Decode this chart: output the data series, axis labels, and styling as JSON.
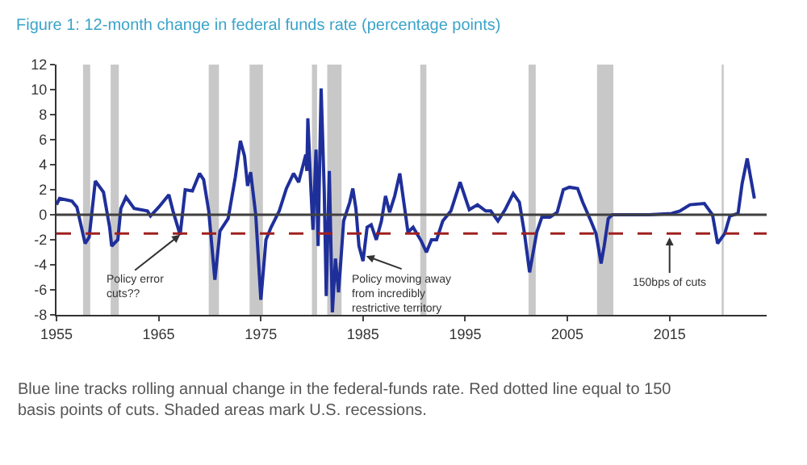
{
  "chart_data": {
    "type": "line",
    "title": "Figure 1: 12-month change in federal funds rate (percentage points)",
    "x": [
      1955.0,
      1955.3,
      1956.5,
      1957.0,
      1957.8,
      1958.2,
      1958.8,
      1959.6,
      1960.2,
      1960.4,
      1961.0,
      1961.3,
      1961.8,
      1962.6,
      1963.9,
      1964.2,
      1965.0,
      1966.0,
      1966.4,
      1967.1,
      1967.6,
      1968.3,
      1969.0,
      1969.4,
      1969.9,
      1970.5,
      1971.0,
      1971.8,
      1972.5,
      1973.0,
      1973.4,
      1973.7,
      1974.0,
      1974.5,
      1975.0,
      1975.5,
      1976.0,
      1976.8,
      1977.5,
      1978.2,
      1978.7,
      1979.4,
      1979.5,
      1979.6,
      1979.9,
      1980.1,
      1980.4,
      1980.6,
      1980.9,
      1981.2,
      1981.4,
      1981.7,
      1982.0,
      1982.3,
      1982.6,
      1982.8,
      1983.1,
      1983.7,
      1984.0,
      1984.3,
      1984.6,
      1985.0,
      1985.4,
      1985.8,
      1986.3,
      1986.8,
      1987.2,
      1987.6,
      1988.1,
      1988.6,
      1989.4,
      1989.9,
      1990.7,
      1991.2,
      1991.7,
      1992.2,
      1992.8,
      1993.6,
      1994.5,
      1995.4,
      1996.2,
      1997.0,
      1997.5,
      1998.2,
      1998.9,
      1999.7,
      2000.3,
      2000.8,
      2001.3,
      2002.0,
      2002.5,
      2003.3,
      2004.0,
      2004.6,
      2005.2,
      2006.0,
      2006.5,
      2007.3,
      2007.8,
      2008.3,
      2008.6,
      2009.0,
      2009.4,
      2011.0,
      2013.0,
      2015.2,
      2016.0,
      2017.0,
      2018.4,
      2019.2,
      2019.7,
      2020.4,
      2020.9,
      2021.7,
      2022.1,
      2022.6,
      2023.3
    ],
    "series": [
      {
        "color": "#1f2f9a",
        "values": [
          0.8,
          1.3,
          1.1,
          0.6,
          -2.3,
          -1.8,
          2.7,
          1.8,
          -1.0,
          -2.5,
          -2.0,
          0.5,
          1.4,
          0.5,
          0.3,
          -0.1,
          0.6,
          1.6,
          0.3,
          -1.6,
          2.0,
          1.9,
          3.3,
          2.8,
          0.3,
          -5.2,
          -1.3,
          -0.3,
          3.0,
          5.9,
          4.7,
          2.3,
          3.4,
          0.0,
          -6.8,
          -2.0,
          -1.0,
          0.3,
          2.1,
          3.3,
          2.6,
          4.8,
          3.5,
          7.7,
          2.0,
          -1.2,
          5.2,
          -2.5,
          10.1,
          2.0,
          -6.5,
          3.5,
          -7.8,
          -3.5,
          -6.2,
          -4.0,
          -0.5,
          1.0,
          2.1,
          0.5,
          -2.5,
          -3.7,
          -1.0,
          -0.8,
          -2.0,
          -0.5,
          1.5,
          0.2,
          1.5,
          3.3,
          -1.4,
          -1.0,
          -2.1,
          -3.0,
          -2.0,
          -2.0,
          -0.5,
          0.3,
          2.6,
          0.4,
          0.8,
          0.3,
          0.3,
          -0.5,
          0.4,
          1.7,
          1.0,
          -1.5,
          -4.6,
          -1.4,
          -0.2,
          -0.2,
          0.2,
          2.0,
          2.2,
          2.1,
          1.0,
          -0.5,
          -1.5,
          -3.9,
          -2.5,
          -0.3,
          0.0,
          0.0,
          0.0,
          0.1,
          0.3,
          0.8,
          0.9,
          0.0,
          -2.3,
          -1.5,
          -0.1,
          0.1,
          2.5,
          4.5,
          1.3
        ]
      }
    ],
    "xlim": [
      1955,
      2024.5
    ],
    "xticks": [
      1955,
      1965,
      1975,
      1985,
      1995,
      2005,
      2015
    ],
    "ylim": [
      -8,
      12
    ],
    "yticks": [
      -8,
      -6,
      -4,
      -2,
      0,
      2,
      4,
      6,
      8,
      10,
      12
    ],
    "line_style": "solid",
    "ref_lines": [
      {
        "axis": "y",
        "value": 0,
        "color": "#404040",
        "line_style": "solid"
      },
      {
        "axis": "y",
        "value": -1.5,
        "color": "#a02020",
        "line_style": "dashed"
      }
    ],
    "bands": [
      {
        "axis": "x",
        "from": 1957.6,
        "to": 1958.3,
        "color": "#c8c8c8"
      },
      {
        "axis": "x",
        "from": 1960.3,
        "to": 1961.1,
        "color": "#c8c8c8"
      },
      {
        "axis": "x",
        "from": 1969.9,
        "to": 1970.9,
        "color": "#c8c8c8"
      },
      {
        "axis": "x",
        "from": 1973.9,
        "to": 1975.2,
        "color": "#c8c8c8"
      },
      {
        "axis": "x",
        "from": 1980.0,
        "to": 1980.5,
        "color": "#c8c8c8"
      },
      {
        "axis": "x",
        "from": 1981.5,
        "to": 1982.9,
        "color": "#c8c8c8"
      },
      {
        "axis": "x",
        "from": 1990.6,
        "to": 1991.2,
        "color": "#c8c8c8"
      },
      {
        "axis": "x",
        "from": 2001.2,
        "to": 2001.9,
        "color": "#c8c8c8"
      },
      {
        "axis": "x",
        "from": 2007.9,
        "to": 2009.5,
        "color": "#c8c8c8"
      },
      {
        "axis": "x",
        "from": 2020.1,
        "to": 2020.3,
        "color": "#c8c8c8"
      }
    ],
    "annotations": [
      {
        "text": "Policy error\ncuts??",
        "x": 1967.1,
        "y": -1.6
      },
      {
        "text": "Policy moving away\nfrom incredibly\nrestrictive territory",
        "x": 1985.3,
        "y": -3.3
      },
      {
        "text": "150bps of cuts",
        "x": 2015.0,
        "y": -1.8
      },
      "Blue line tracks rolling annual change in the federal-funds rate. Red dotted line equal to 150 basis points of cuts. Shaded areas mark U.S. recessions."
    ]
  }
}
